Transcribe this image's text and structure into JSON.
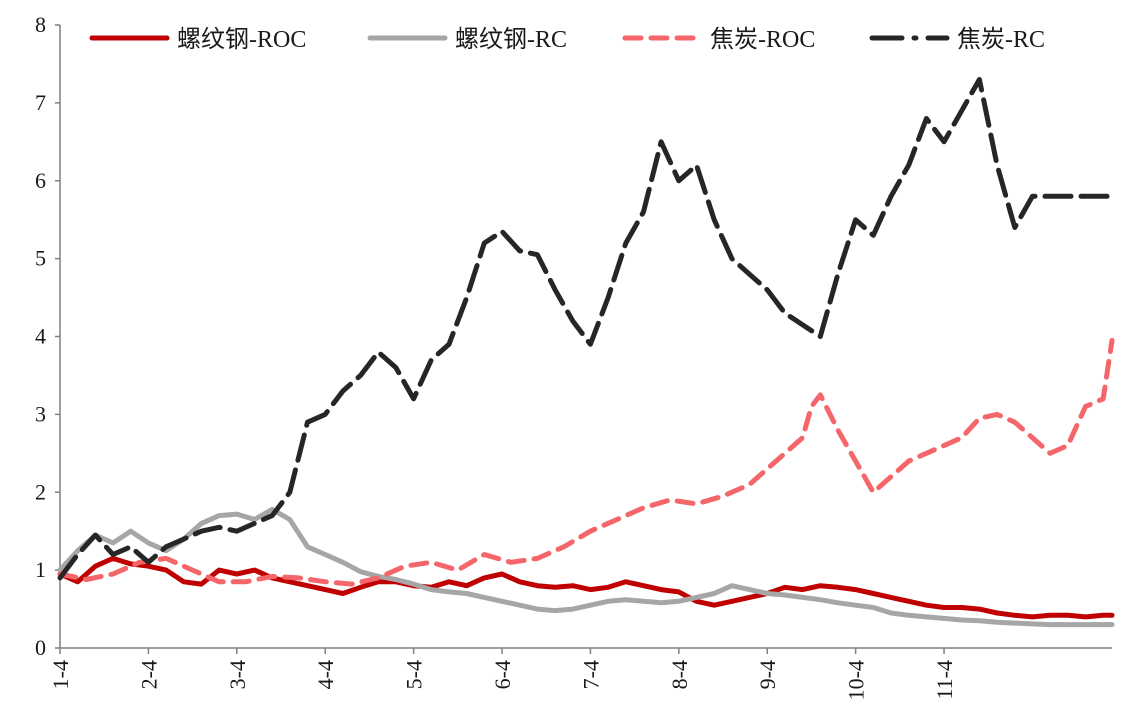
{
  "chart_data": {
    "type": "line",
    "title": "",
    "xlabel": "",
    "ylabel": "",
    "ylim": [
      0,
      8
    ],
    "yticks": [
      "0",
      "1",
      "2",
      "3",
      "4",
      "5",
      "6",
      "7",
      "8"
    ],
    "xticks": [
      "1-4",
      "2-4",
      "3-4",
      "4-4",
      "5-4",
      "6-4",
      "7-4",
      "8-4",
      "9-4",
      "10-4",
      "11-4"
    ],
    "grid": false,
    "legend_position": "top",
    "x_range": [
      0,
      11.9
    ],
    "series": [
      {
        "name": "螺纹钢-ROC",
        "color": "#c00000",
        "style": "solid",
        "x": [
          0,
          0.2,
          0.4,
          0.6,
          0.8,
          1.0,
          1.2,
          1.4,
          1.6,
          1.8,
          2.0,
          2.2,
          2.4,
          2.6,
          2.8,
          3.0,
          3.2,
          3.4,
          3.6,
          3.8,
          4.0,
          4.2,
          4.4,
          4.6,
          4.8,
          5.0,
          5.2,
          5.4,
          5.6,
          5.8,
          6.0,
          6.2,
          6.4,
          6.6,
          6.8,
          7.0,
          7.2,
          7.4,
          7.6,
          7.8,
          8.0,
          8.2,
          8.4,
          8.6,
          8.8,
          9.0,
          9.2,
          9.4,
          9.6,
          9.8,
          10.0,
          10.2,
          10.4,
          10.6,
          10.8,
          11.0,
          11.2,
          11.4,
          11.6,
          11.8,
          11.9
        ],
        "values": [
          0.95,
          0.85,
          1.05,
          1.15,
          1.08,
          1.05,
          1.0,
          0.85,
          0.82,
          1.0,
          0.95,
          1.0,
          0.9,
          0.85,
          0.8,
          0.75,
          0.7,
          0.78,
          0.85,
          0.85,
          0.8,
          0.78,
          0.85,
          0.8,
          0.9,
          0.95,
          0.85,
          0.8,
          0.78,
          0.8,
          0.75,
          0.78,
          0.85,
          0.8,
          0.75,
          0.72,
          0.6,
          0.55,
          0.6,
          0.65,
          0.7,
          0.78,
          0.75,
          0.8,
          0.78,
          0.75,
          0.7,
          0.65,
          0.6,
          0.55,
          0.52,
          0.52,
          0.5,
          0.45,
          0.42,
          0.4,
          0.42,
          0.42,
          0.4,
          0.42,
          0.42
        ]
      },
      {
        "name": "螺纹钢-RC",
        "color": "#a6a6a6",
        "style": "solid",
        "x": [
          0,
          0.2,
          0.4,
          0.6,
          0.8,
          1.0,
          1.2,
          1.4,
          1.6,
          1.8,
          2.0,
          2.2,
          2.4,
          2.6,
          2.8,
          3.0,
          3.2,
          3.4,
          3.6,
          3.8,
          4.0,
          4.2,
          4.4,
          4.6,
          4.8,
          5.0,
          5.2,
          5.4,
          5.6,
          5.8,
          6.0,
          6.2,
          6.4,
          6.6,
          6.8,
          7.0,
          7.2,
          7.4,
          7.6,
          7.8,
          8.0,
          8.2,
          8.4,
          8.6,
          8.8,
          9.0,
          9.2,
          9.4,
          9.6,
          9.8,
          10.0,
          10.2,
          10.4,
          10.6,
          10.8,
          11.0,
          11.2,
          11.4,
          11.6,
          11.8,
          11.9
        ],
        "values": [
          1.0,
          1.25,
          1.45,
          1.35,
          1.5,
          1.35,
          1.25,
          1.4,
          1.6,
          1.7,
          1.72,
          1.65,
          1.78,
          1.65,
          1.3,
          1.2,
          1.1,
          0.98,
          0.92,
          0.88,
          0.82,
          0.75,
          0.72,
          0.7,
          0.65,
          0.6,
          0.55,
          0.5,
          0.48,
          0.5,
          0.55,
          0.6,
          0.62,
          0.6,
          0.58,
          0.6,
          0.65,
          0.7,
          0.8,
          0.75,
          0.7,
          0.68,
          0.65,
          0.62,
          0.58,
          0.55,
          0.52,
          0.45,
          0.42,
          0.4,
          0.38,
          0.36,
          0.35,
          0.33,
          0.32,
          0.31,
          0.3,
          0.3,
          0.3,
          0.3,
          0.3
        ]
      },
      {
        "name": "焦炭-ROC",
        "color": "#f4666a",
        "style": "dashed",
        "x": [
          0,
          0.3,
          0.6,
          0.9,
          1.2,
          1.5,
          1.8,
          2.1,
          2.4,
          2.7,
          3.0,
          3.3,
          3.6,
          3.9,
          4.2,
          4.5,
          4.8,
          5.1,
          5.4,
          5.7,
          6.0,
          6.3,
          6.6,
          6.9,
          7.2,
          7.5,
          7.8,
          8.0,
          8.2,
          8.4,
          8.5,
          8.6,
          8.8,
          9.0,
          9.2,
          9.4,
          9.6,
          9.8,
          10.0,
          10.2,
          10.4,
          10.6,
          10.8,
          11.0,
          11.2,
          11.4,
          11.6,
          11.8,
          11.9
        ],
        "values": [
          0.95,
          0.88,
          0.95,
          1.1,
          1.15,
          1.0,
          0.85,
          0.85,
          0.92,
          0.9,
          0.85,
          0.82,
          0.9,
          1.05,
          1.1,
          1.0,
          1.2,
          1.1,
          1.15,
          1.3,
          1.5,
          1.65,
          1.8,
          1.9,
          1.85,
          1.95,
          2.1,
          2.3,
          2.5,
          2.7,
          3.1,
          3.25,
          2.8,
          2.4,
          2.0,
          2.2,
          2.4,
          2.5,
          2.6,
          2.7,
          2.95,
          3.0,
          2.9,
          2.7,
          2.5,
          2.6,
          3.1,
          3.2,
          3.95
        ]
      },
      {
        "name": "焦炭-RC",
        "color": "#262626",
        "style": "dashed",
        "x": [
          0,
          0.2,
          0.4,
          0.6,
          0.8,
          1.0,
          1.2,
          1.4,
          1.6,
          1.8,
          2.0,
          2.2,
          2.4,
          2.6,
          2.8,
          3.0,
          3.2,
          3.4,
          3.6,
          3.8,
          4.0,
          4.2,
          4.4,
          4.6,
          4.8,
          5.0,
          5.2,
          5.4,
          5.6,
          5.8,
          6.0,
          6.2,
          6.4,
          6.6,
          6.8,
          7.0,
          7.2,
          7.4,
          7.6,
          7.8,
          8.0,
          8.2,
          8.4,
          8.6,
          8.8,
          9.0,
          9.2,
          9.4,
          9.6,
          9.8,
          10.0,
          10.2,
          10.4,
          10.6,
          10.8,
          11.0,
          11.2,
          11.4,
          11.6,
          11.8,
          11.9
        ],
        "values": [
          0.9,
          1.2,
          1.45,
          1.2,
          1.3,
          1.1,
          1.3,
          1.4,
          1.5,
          1.55,
          1.5,
          1.6,
          1.7,
          2.0,
          2.9,
          3.0,
          3.3,
          3.5,
          3.8,
          3.6,
          3.2,
          3.7,
          3.9,
          4.5,
          5.2,
          5.35,
          5.1,
          5.05,
          4.6,
          4.2,
          3.9,
          4.5,
          5.2,
          5.6,
          6.5,
          6.0,
          6.2,
          5.5,
          5.0,
          4.8,
          4.6,
          4.3,
          4.15,
          4.0,
          4.8,
          5.5,
          5.3,
          5.8,
          6.2,
          6.8,
          6.5,
          6.9,
          7.3,
          6.2,
          5.4,
          5.8,
          5.8,
          5.8,
          5.8,
          5.8,
          5.8
        ]
      }
    ]
  }
}
